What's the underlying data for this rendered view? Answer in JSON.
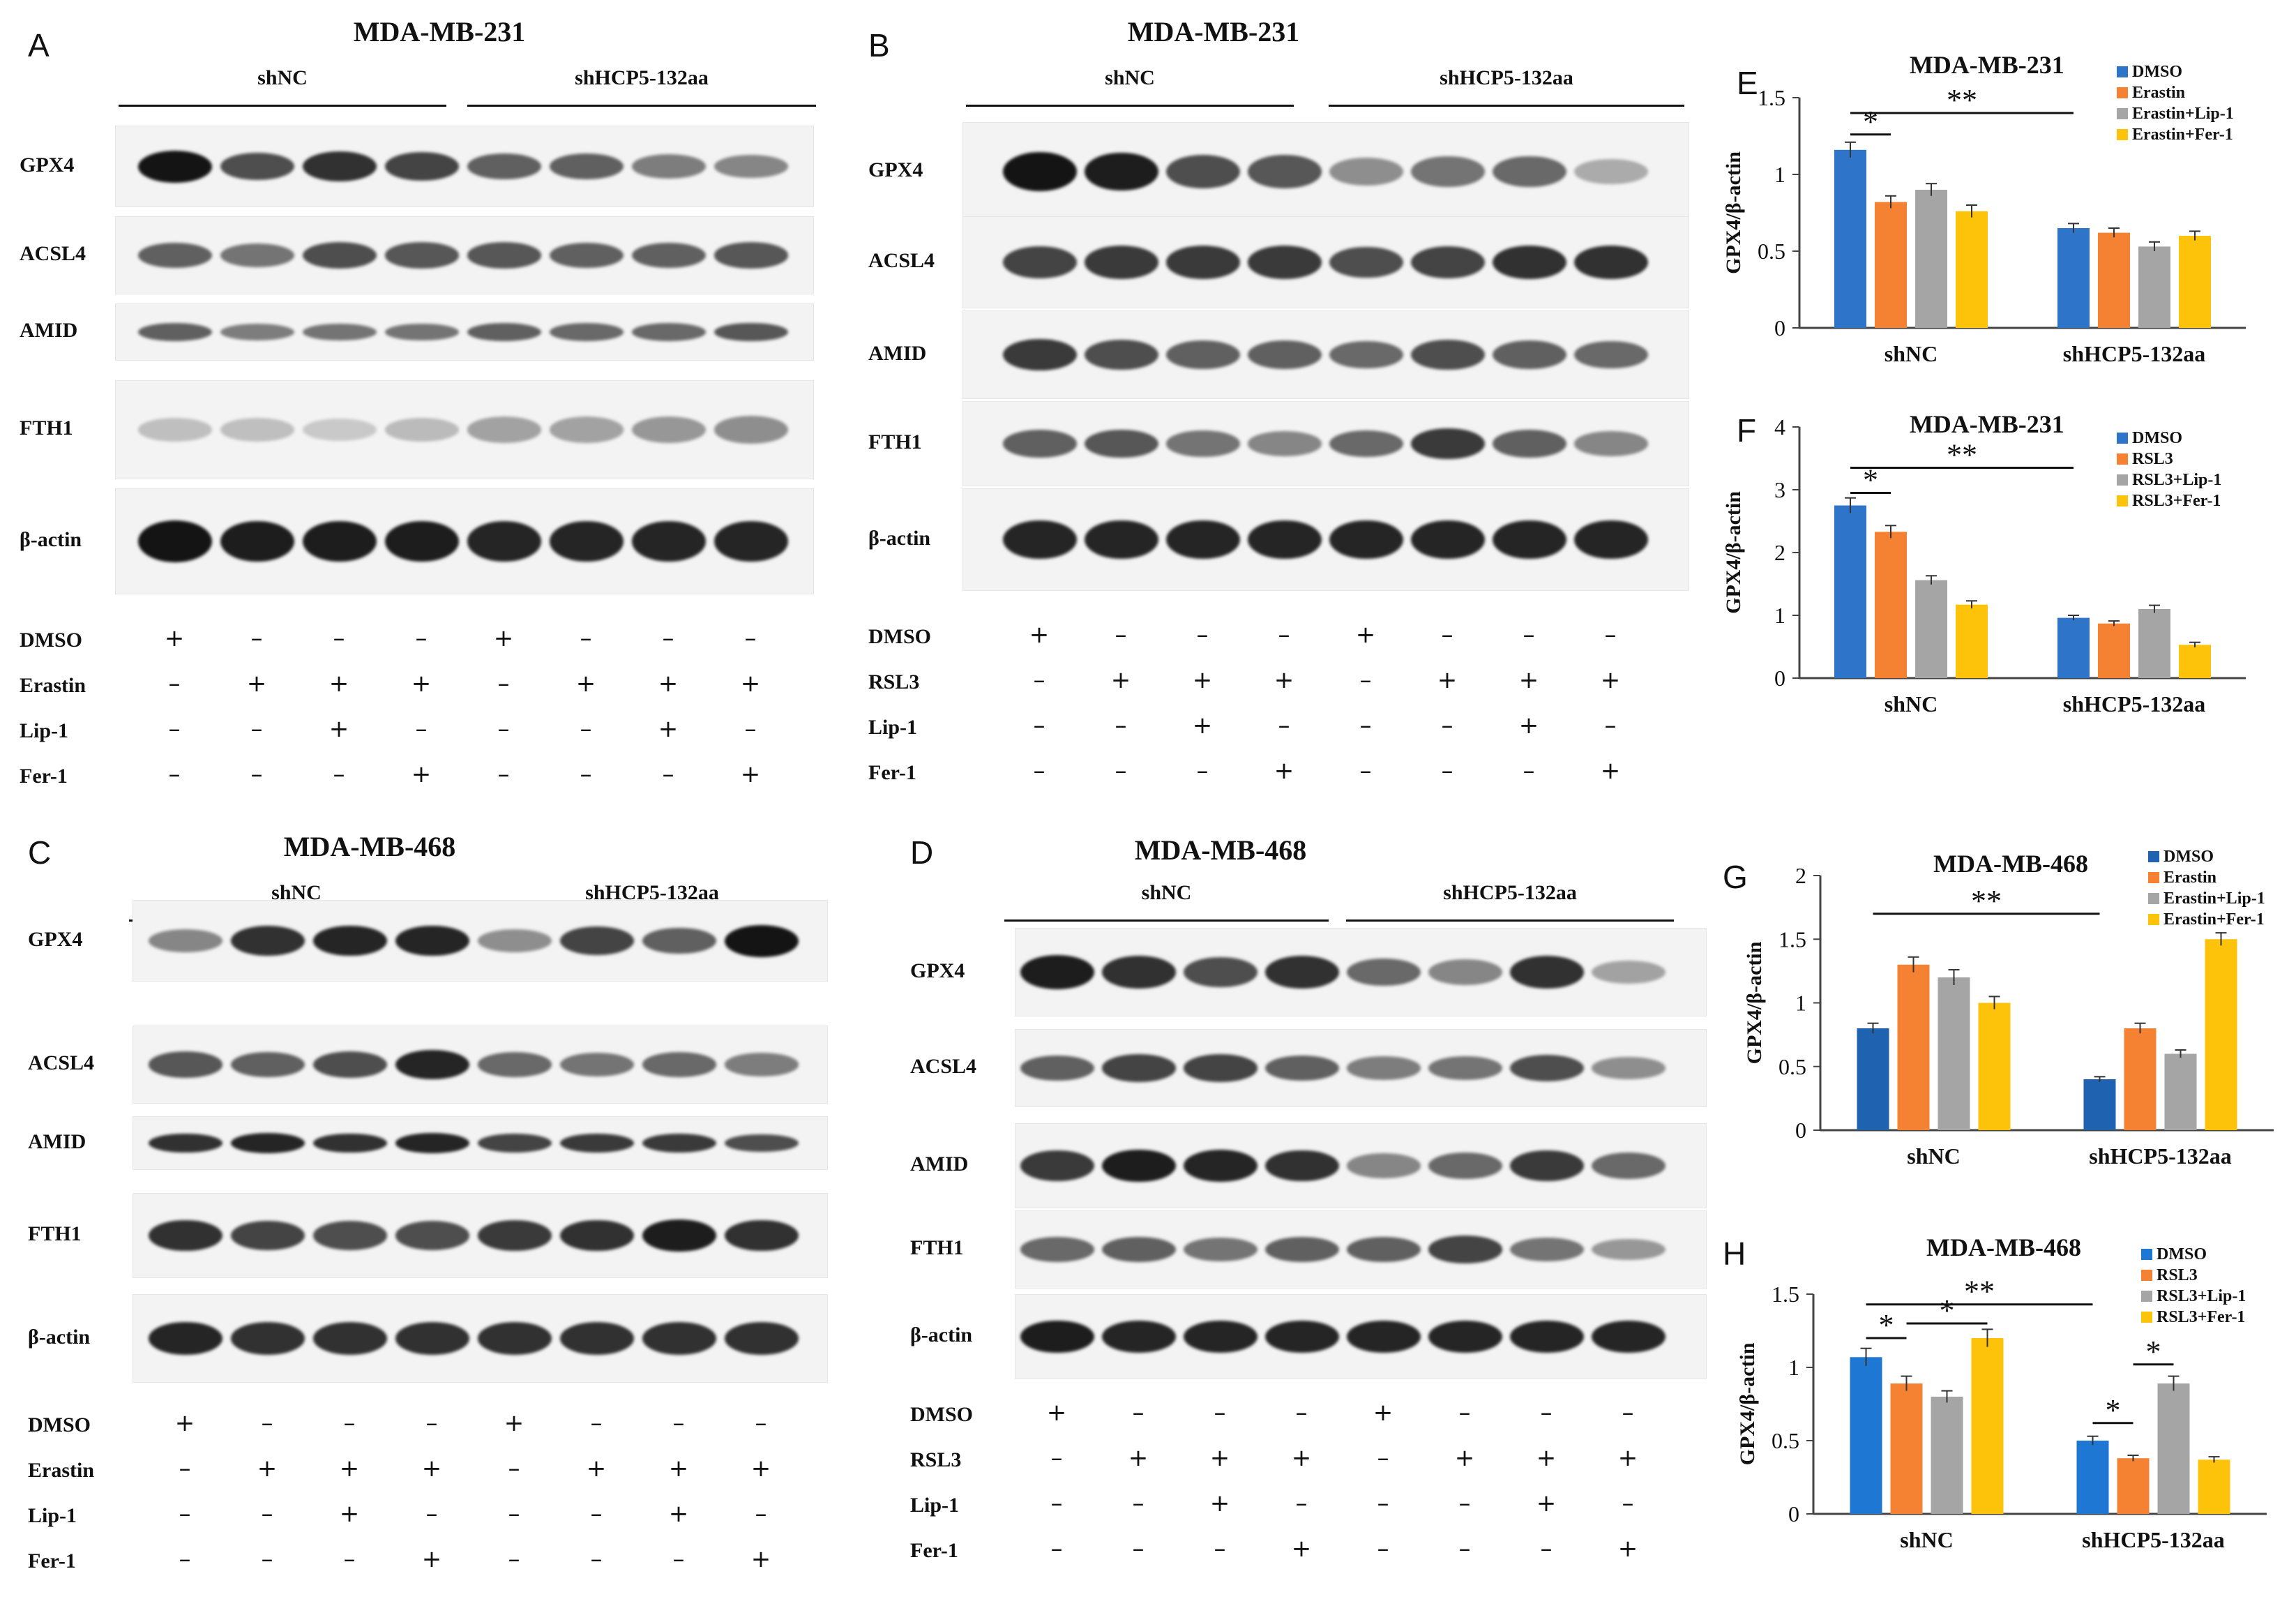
{
  "blots": [
    {
      "id": "A",
      "panel_label": "A",
      "title": "MDA-MB-231",
      "groups": [
        "shNC",
        "shHCP5-132aa"
      ],
      "proteins": [
        "GPX4",
        "ACSL4",
        "AMID",
        "FTH1",
        "β-actin"
      ],
      "treatments": [
        {
          "name": "DMSO",
          "signs": [
            "+",
            "–",
            "–",
            "–",
            "+",
            "–",
            "–",
            "–"
          ]
        },
        {
          "name": "Erastin",
          "signs": [
            "–",
            "+",
            "+",
            "+",
            "–",
            "+",
            "+",
            "+"
          ]
        },
        {
          "name": "Lip-1",
          "signs": [
            "–",
            "–",
            "+",
            "–",
            "–",
            "–",
            "+",
            "–"
          ]
        },
        {
          "name": "Fer-1",
          "signs": [
            "–",
            "–",
            "–",
            "+",
            "–",
            "–",
            "–",
            "+"
          ]
        }
      ]
    },
    {
      "id": "B",
      "panel_label": "B",
      "title": "MDA-MB-231",
      "groups": [
        "shNC",
        "shHCP5-132aa"
      ],
      "proteins": [
        "GPX4",
        "ACSL4",
        "AMID",
        "FTH1",
        "β-actin"
      ],
      "treatments": [
        {
          "name": "DMSO",
          "signs": [
            "+",
            "–",
            "–",
            "–",
            "+",
            "–",
            "–",
            "–"
          ]
        },
        {
          "name": "RSL3",
          "signs": [
            "–",
            "+",
            "+",
            "+",
            "–",
            "+",
            "+",
            "+"
          ]
        },
        {
          "name": "Lip-1",
          "signs": [
            "–",
            "–",
            "+",
            "–",
            "–",
            "–",
            "+",
            "–"
          ]
        },
        {
          "name": "Fer-1",
          "signs": [
            "–",
            "–",
            "–",
            "+",
            "–",
            "–",
            "–",
            "+"
          ]
        }
      ]
    },
    {
      "id": "C",
      "panel_label": "C",
      "title": "MDA-MB-468",
      "groups": [
        "shNC",
        "shHCP5-132aa"
      ],
      "proteins": [
        "GPX4",
        "ACSL4",
        "AMID",
        "FTH1",
        "β-actin"
      ],
      "treatments": [
        {
          "name": "DMSO",
          "signs": [
            "+",
            "–",
            "–",
            "–",
            "+",
            "–",
            "–",
            "–"
          ]
        },
        {
          "name": "Erastin",
          "signs": [
            "–",
            "+",
            "+",
            "+",
            "–",
            "+",
            "+",
            "+"
          ]
        },
        {
          "name": "Lip-1",
          "signs": [
            "–",
            "–",
            "+",
            "–",
            "–",
            "–",
            "+",
            "–"
          ]
        },
        {
          "name": "Fer-1",
          "signs": [
            "–",
            "–",
            "–",
            "+",
            "–",
            "–",
            "–",
            "+"
          ]
        }
      ]
    },
    {
      "id": "D",
      "panel_label": "D",
      "title": "MDA-MB-468",
      "groups": [
        "shNC",
        "shHCP5-132aa"
      ],
      "proteins": [
        "GPX4",
        "ACSL4",
        "AMID",
        "FTH1",
        "β-actin"
      ],
      "treatments": [
        {
          "name": "DMSO",
          "signs": [
            "+",
            "–",
            "–",
            "–",
            "+",
            "–",
            "–",
            "–"
          ]
        },
        {
          "name": "RSL3",
          "signs": [
            "–",
            "+",
            "+",
            "+",
            "–",
            "+",
            "+",
            "+"
          ]
        },
        {
          "name": "Lip-1",
          "signs": [
            "–",
            "–",
            "+",
            "–",
            "–",
            "–",
            "+",
            "–"
          ]
        },
        {
          "name": "Fer-1",
          "signs": [
            "–",
            "–",
            "–",
            "+",
            "–",
            "–",
            "–",
            "+"
          ]
        }
      ]
    }
  ],
  "chart_data": [
    {
      "id": "E",
      "panel_label": "E",
      "type": "bar",
      "title": "MDA-MB-231",
      "ylabel": "GPX4/β-actin",
      "ylim": [
        0,
        1.5
      ],
      "yticks": [
        0,
        0.5,
        1,
        1.5
      ],
      "ytick_labels": [
        "0",
        "0.5",
        "1",
        "1.5"
      ],
      "categories": [
        "shNC",
        "shHCP5-132aa"
      ],
      "series": [
        {
          "name": "DMSO",
          "color": "#2e75c9",
          "values": [
            1.16,
            0.65
          ],
          "errors": [
            0.05,
            0.03
          ]
        },
        {
          "name": "Erastin",
          "color": "#f58232",
          "values": [
            0.82,
            0.62
          ],
          "errors": [
            0.04,
            0.03
          ]
        },
        {
          "name": "Erastin+Lip-1",
          "color": "#a5a5a5",
          "values": [
            0.9,
            0.53
          ],
          "errors": [
            0.04,
            0.03
          ]
        },
        {
          "name": "Erastin+Fer-1",
          "color": "#fcc30a",
          "values": [
            0.76,
            0.6
          ],
          "errors": [
            0.04,
            0.03
          ]
        }
      ],
      "legend_position": "top-right",
      "annotations": [
        {
          "text": "*",
          "from": [
            0,
            0
          ],
          "to": [
            0,
            1
          ],
          "y": 1.26
        },
        {
          "text": "**",
          "from": [
            0,
            0
          ],
          "to": [
            1,
            0
          ],
          "y": 1.4
        }
      ]
    },
    {
      "id": "F",
      "panel_label": "F",
      "type": "bar",
      "title": "MDA-MB-231",
      "ylabel": "GPX4/β-actin",
      "ylim": [
        0,
        4
      ],
      "yticks": [
        0,
        1,
        2,
        3,
        4
      ],
      "ytick_labels": [
        "0",
        "1",
        "2",
        "3",
        "4"
      ],
      "categories": [
        "shNC",
        "shHCP5-132aa"
      ],
      "series": [
        {
          "name": "DMSO",
          "color": "#2e75c9",
          "values": [
            2.75,
            0.96
          ],
          "errors": [
            0.12,
            0.04
          ]
        },
        {
          "name": "RSL3",
          "color": "#f58232",
          "values": [
            2.33,
            0.87
          ],
          "errors": [
            0.1,
            0.04
          ]
        },
        {
          "name": "RSL3+Lip-1",
          "color": "#a5a5a5",
          "values": [
            1.56,
            1.1
          ],
          "errors": [
            0.07,
            0.06
          ]
        },
        {
          "name": "RSL3+Fer-1",
          "color": "#fcc30a",
          "values": [
            1.17,
            0.53
          ],
          "errors": [
            0.06,
            0.04
          ]
        }
      ],
      "legend_position": "top-right",
      "annotations": [
        {
          "text": "*",
          "from": [
            0,
            0
          ],
          "to": [
            0,
            1
          ],
          "y": 2.95
        },
        {
          "text": "**",
          "from": [
            0,
            0
          ],
          "to": [
            1,
            0
          ],
          "y": 3.35
        }
      ]
    },
    {
      "id": "G",
      "panel_label": "G",
      "type": "bar",
      "title": "MDA-MB-468",
      "ylabel": "GPX4/β-actin",
      "ylim": [
        0,
        2
      ],
      "yticks": [
        0,
        0.5,
        1,
        1.5,
        2
      ],
      "ytick_labels": [
        "0",
        "0.5",
        "1",
        "1.5",
        "2"
      ],
      "categories": [
        "shNC",
        "shHCP5-132aa"
      ],
      "series": [
        {
          "name": "DMSO",
          "color": "#1f63b0",
          "values": [
            0.8,
            0.4
          ],
          "errors": [
            0.04,
            0.02
          ]
        },
        {
          "name": "Erastin",
          "color": "#f58232",
          "values": [
            1.3,
            0.8
          ],
          "errors": [
            0.06,
            0.04
          ]
        },
        {
          "name": "Erastin+Lip-1",
          "color": "#a5a5a5",
          "values": [
            1.2,
            0.6
          ],
          "errors": [
            0.06,
            0.03
          ]
        },
        {
          "name": "Erastin+Fer-1",
          "color": "#fcc30a",
          "values": [
            1.0,
            1.5
          ],
          "errors": [
            0.05,
            0.05
          ]
        }
      ],
      "legend_position": "top-right",
      "annotations": [
        {
          "text": "**",
          "from": [
            0,
            0
          ],
          "to": [
            1,
            0
          ],
          "y": 1.7
        }
      ]
    },
    {
      "id": "H",
      "panel_label": "H",
      "type": "bar",
      "title": "MDA-MB-468",
      "ylabel": "GPX4/β-actin",
      "ylim": [
        0,
        1.5
      ],
      "yticks": [
        0,
        0.5,
        1,
        1.5
      ],
      "ytick_labels": [
        "0",
        "0.5",
        "1",
        "1.5"
      ],
      "categories": [
        "shNC",
        "shHCP5-132aa"
      ],
      "series": [
        {
          "name": "DMSO",
          "color": "#1f77d4",
          "values": [
            1.07,
            0.5
          ],
          "errors": [
            0.06,
            0.03
          ]
        },
        {
          "name": "RSL3",
          "color": "#f58232",
          "values": [
            0.89,
            0.38
          ],
          "errors": [
            0.05,
            0.02
          ]
        },
        {
          "name": "RSL3+Lip-1",
          "color": "#a5a5a5",
          "values": [
            0.8,
            0.89
          ],
          "errors": [
            0.04,
            0.05
          ]
        },
        {
          "name": "RSL3+Fer-1",
          "color": "#fcc30a",
          "values": [
            1.2,
            0.37
          ],
          "errors": [
            0.06,
            0.02
          ]
        }
      ],
      "legend_position": "top-right",
      "annotations": [
        {
          "text": "*",
          "from": [
            0,
            0
          ],
          "to": [
            0,
            1
          ],
          "y": 1.2
        },
        {
          "text": "*",
          "from": [
            0,
            1
          ],
          "to": [
            0,
            3
          ],
          "y": 1.3
        },
        {
          "text": "**",
          "from": [
            0,
            0
          ],
          "to": [
            1,
            0
          ],
          "y": 1.43
        },
        {
          "text": "*",
          "from": [
            1,
            0
          ],
          "to": [
            1,
            1
          ],
          "y": 0.62
        },
        {
          "text": "*",
          "from": [
            1,
            1
          ],
          "to": [
            1,
            2
          ],
          "y": 1.02
        }
      ]
    }
  ]
}
